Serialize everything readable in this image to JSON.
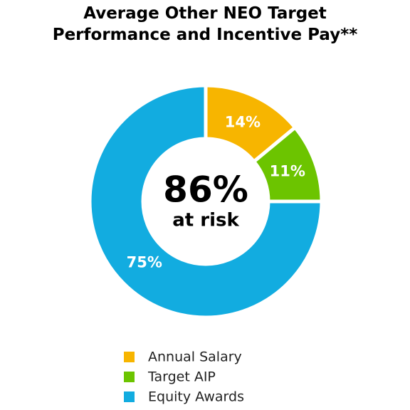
{
  "chart_data": {
    "type": "donut",
    "title": "Average Other NEO Target Performance and Incentive Pay**",
    "categories": [
      "Annual Salary",
      "Target AIP",
      "Equity Awards"
    ],
    "values": [
      14,
      11,
      75
    ],
    "value_labels": [
      "14%",
      "11%",
      "75%"
    ],
    "colors": [
      "#f7b500",
      "#6cc400",
      "#12ace0"
    ],
    "center_text": "86%",
    "center_subtext": "at risk",
    "legend": "bottom"
  }
}
